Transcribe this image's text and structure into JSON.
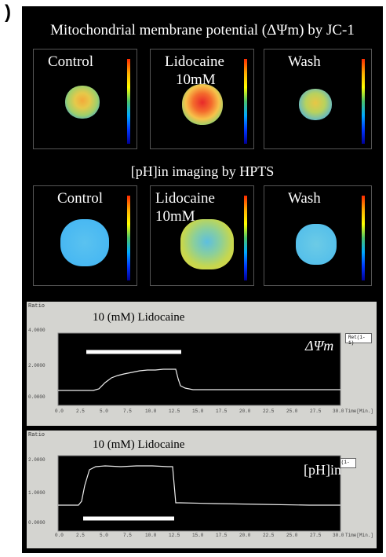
{
  "figure": {
    "panel_letter": ")",
    "jc1": {
      "title": "Mitochondrial membrane potential (ΔΨm) by JC-1",
      "tiles": [
        {
          "label": "Control",
          "label2": ""
        },
        {
          "label": "Lidocaine",
          "label2": "10mM"
        },
        {
          "label": "Wash",
          "label2": ""
        }
      ]
    },
    "hpts": {
      "title": "[pH]in imaging by HPTS",
      "tiles": [
        {
          "label": "Control",
          "label2": ""
        },
        {
          "label": "Lidocaine",
          "label2": "10mM"
        },
        {
          "label": "Wash",
          "label2": ""
        }
      ]
    },
    "graph1": {
      "ratio_label": "Ratio",
      "title": "10 (mM) Lidocaine",
      "symbol": "ΔΨm",
      "legend": "Ret(1-1)",
      "y_ticks": [
        "4.0000",
        "2.0000",
        "0.0000"
      ],
      "x_ticks": [
        "0.0",
        "2.5",
        "5.0",
        "7.5",
        "10.0",
        "12.5",
        "15.0",
        "17.5",
        "20.0",
        "22.5",
        "25.0",
        "27.5",
        "30.0"
      ],
      "x_unit": "Time[Min.]"
    },
    "graph2": {
      "ratio_label": "Ratio",
      "title": "10 (mM) Lidocaine",
      "symbol": "[pH]in",
      "legend": "Ret(1-1)",
      "y_ticks": [
        "2.0000",
        "1.0000",
        "0.0000"
      ],
      "x_ticks": [
        "0.0",
        "2.5",
        "5.0",
        "7.5",
        "10.0",
        "12.5",
        "15.0",
        "17.5",
        "20.0",
        "22.5",
        "25.0",
        "27.5",
        "30.0"
      ],
      "x_unit": "Time[Min.]"
    }
  }
}
